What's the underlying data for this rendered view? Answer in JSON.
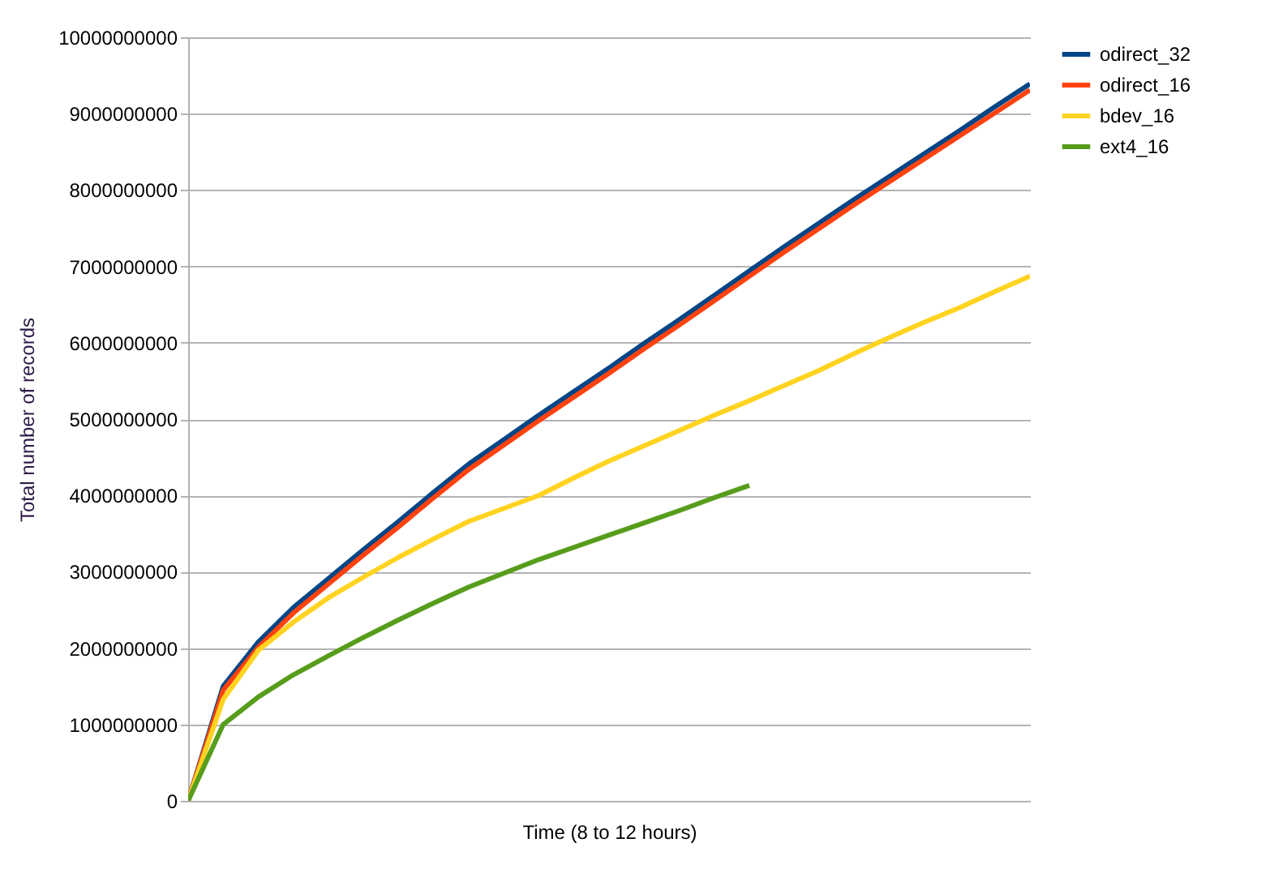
{
  "chart_data": {
    "type": "line",
    "xlabel": "Time (8 to 12 hours)",
    "ylabel": "Total number of records",
    "categories": [
      null,
      null,
      null,
      null,
      null,
      null,
      null,
      null,
      null,
      null,
      null,
      null,
      null,
      null,
      null,
      null,
      null,
      null,
      null,
      null,
      null,
      null,
      null,
      null,
      null
    ],
    "series": [
      {
        "name": "odirect_32",
        "color": "#004586",
        "values": [
          0,
          1500000000,
          2080000000,
          2530000000,
          2910000000,
          3290000000,
          3660000000,
          4040000000,
          4410000000,
          4730000000,
          5050000000,
          5360000000,
          5670000000,
          5990000000,
          6300000000,
          6620000000,
          6940000000,
          7260000000,
          7570000000,
          7880000000,
          8180000000,
          8480000000,
          8780000000,
          9090000000,
          9390000000
        ]
      },
      {
        "name": "odirect_16",
        "color": "#ff420e",
        "values": [
          0,
          1450000000,
          2010000000,
          2460000000,
          2840000000,
          3220000000,
          3590000000,
          3970000000,
          4340000000,
          4660000000,
          4980000000,
          5290000000,
          5600000000,
          5920000000,
          6230000000,
          6550000000,
          6870000000,
          7190000000,
          7500000000,
          7810000000,
          8110000000,
          8410000000,
          8710000000,
          9010000000,
          9310000000
        ]
      },
      {
        "name": "bdev_16",
        "color": "#ffd320",
        "values": [
          0,
          1330000000,
          1970000000,
          2340000000,
          2660000000,
          2930000000,
          3190000000,
          3430000000,
          3660000000,
          3830000000,
          4000000000,
          4230000000,
          4450000000,
          4650000000,
          4850000000,
          5050000000,
          5240000000,
          5440000000,
          5640000000,
          5860000000,
          6070000000,
          6270000000,
          6460000000,
          6670000000,
          6870000000
        ]
      },
      {
        "name": "ext4_16",
        "color": "#579d1c",
        "values": [
          0,
          1000000000,
          1360000000,
          1650000000,
          1900000000,
          2140000000,
          2370000000,
          2590000000,
          2800000000,
          2980000000,
          3160000000,
          3320000000,
          3480000000,
          3640000000,
          3800000000,
          3970000000,
          4130000000,
          null,
          null,
          null,
          null,
          null,
          null,
          null,
          null
        ]
      }
    ],
    "ylim": [
      0,
      10000000000
    ],
    "yticks": [
      0,
      1000000000,
      2000000000,
      3000000000,
      4000000000,
      5000000000,
      6000000000,
      7000000000,
      8000000000,
      9000000000,
      10000000000
    ],
    "grid": "y",
    "legend": "right",
    "tick_labels": "y",
    "marker": "none",
    "line_style": "solid"
  }
}
